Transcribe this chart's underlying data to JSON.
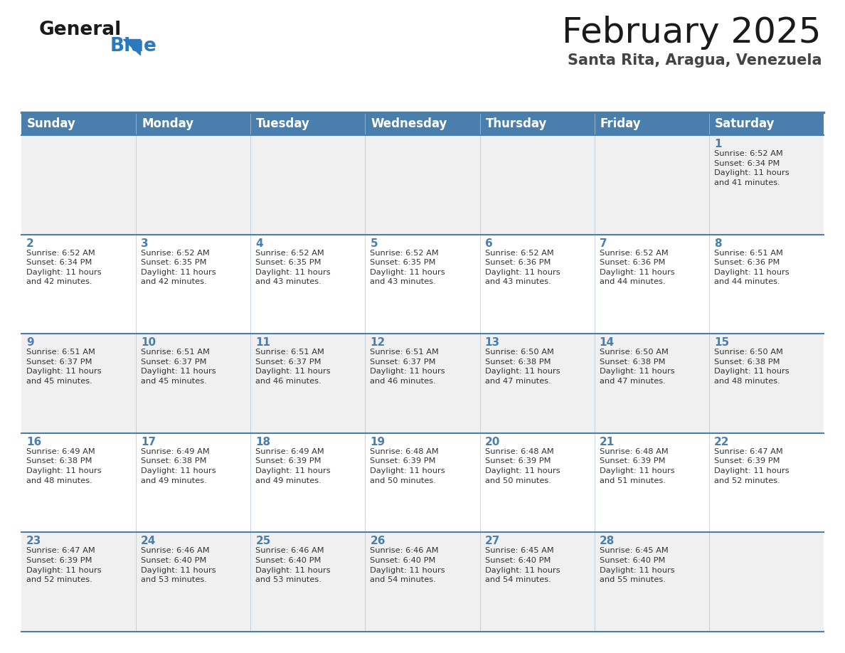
{
  "title": "February 2025",
  "subtitle": "Santa Rita, Aragua, Venezuela",
  "days_of_week": [
    "Sunday",
    "Monday",
    "Tuesday",
    "Wednesday",
    "Thursday",
    "Friday",
    "Saturday"
  ],
  "header_bg": "#4a7fad",
  "header_text": "#ffffff",
  "cell_bg_row0": "#f0f0f0",
  "cell_bg_row1": "#ffffff",
  "day_num_color": "#4a7fad",
  "text_color": "#333333",
  "border_color": "#4a7fad",
  "thin_line_color": "#b0c4d8",
  "logo_general_color": "#1a1a1a",
  "logo_blue_color": "#2a7abf",
  "calendar_data": [
    [
      null,
      null,
      null,
      null,
      null,
      null,
      {
        "day": 1,
        "sunrise": "6:52 AM",
        "sunset": "6:34 PM",
        "daylight": "11 hours and 41 minutes"
      }
    ],
    [
      {
        "day": 2,
        "sunrise": "6:52 AM",
        "sunset": "6:34 PM",
        "daylight": "11 hours and 42 minutes"
      },
      {
        "day": 3,
        "sunrise": "6:52 AM",
        "sunset": "6:35 PM",
        "daylight": "11 hours and 42 minutes"
      },
      {
        "day": 4,
        "sunrise": "6:52 AM",
        "sunset": "6:35 PM",
        "daylight": "11 hours and 43 minutes"
      },
      {
        "day": 5,
        "sunrise": "6:52 AM",
        "sunset": "6:35 PM",
        "daylight": "11 hours and 43 minutes"
      },
      {
        "day": 6,
        "sunrise": "6:52 AM",
        "sunset": "6:36 PM",
        "daylight": "11 hours and 43 minutes"
      },
      {
        "day": 7,
        "sunrise": "6:52 AM",
        "sunset": "6:36 PM",
        "daylight": "11 hours and 44 minutes"
      },
      {
        "day": 8,
        "sunrise": "6:51 AM",
        "sunset": "6:36 PM",
        "daylight": "11 hours and 44 minutes"
      }
    ],
    [
      {
        "day": 9,
        "sunrise": "6:51 AM",
        "sunset": "6:37 PM",
        "daylight": "11 hours and 45 minutes"
      },
      {
        "day": 10,
        "sunrise": "6:51 AM",
        "sunset": "6:37 PM",
        "daylight": "11 hours and 45 minutes"
      },
      {
        "day": 11,
        "sunrise": "6:51 AM",
        "sunset": "6:37 PM",
        "daylight": "11 hours and 46 minutes"
      },
      {
        "day": 12,
        "sunrise": "6:51 AM",
        "sunset": "6:37 PM",
        "daylight": "11 hours and 46 minutes"
      },
      {
        "day": 13,
        "sunrise": "6:50 AM",
        "sunset": "6:38 PM",
        "daylight": "11 hours and 47 minutes"
      },
      {
        "day": 14,
        "sunrise": "6:50 AM",
        "sunset": "6:38 PM",
        "daylight": "11 hours and 47 minutes"
      },
      {
        "day": 15,
        "sunrise": "6:50 AM",
        "sunset": "6:38 PM",
        "daylight": "11 hours and 48 minutes"
      }
    ],
    [
      {
        "day": 16,
        "sunrise": "6:49 AM",
        "sunset": "6:38 PM",
        "daylight": "11 hours and 48 minutes"
      },
      {
        "day": 17,
        "sunrise": "6:49 AM",
        "sunset": "6:38 PM",
        "daylight": "11 hours and 49 minutes"
      },
      {
        "day": 18,
        "sunrise": "6:49 AM",
        "sunset": "6:39 PM",
        "daylight": "11 hours and 49 minutes"
      },
      {
        "day": 19,
        "sunrise": "6:48 AM",
        "sunset": "6:39 PM",
        "daylight": "11 hours and 50 minutes"
      },
      {
        "day": 20,
        "sunrise": "6:48 AM",
        "sunset": "6:39 PM",
        "daylight": "11 hours and 50 minutes"
      },
      {
        "day": 21,
        "sunrise": "6:48 AM",
        "sunset": "6:39 PM",
        "daylight": "11 hours and 51 minutes"
      },
      {
        "day": 22,
        "sunrise": "6:47 AM",
        "sunset": "6:39 PM",
        "daylight": "11 hours and 52 minutes"
      }
    ],
    [
      {
        "day": 23,
        "sunrise": "6:47 AM",
        "sunset": "6:39 PM",
        "daylight": "11 hours and 52 minutes"
      },
      {
        "day": 24,
        "sunrise": "6:46 AM",
        "sunset": "6:40 PM",
        "daylight": "11 hours and 53 minutes"
      },
      {
        "day": 25,
        "sunrise": "6:46 AM",
        "sunset": "6:40 PM",
        "daylight": "11 hours and 53 minutes"
      },
      {
        "day": 26,
        "sunrise": "6:46 AM",
        "sunset": "6:40 PM",
        "daylight": "11 hours and 54 minutes"
      },
      {
        "day": 27,
        "sunrise": "6:45 AM",
        "sunset": "6:40 PM",
        "daylight": "11 hours and 54 minutes"
      },
      {
        "day": 28,
        "sunrise": "6:45 AM",
        "sunset": "6:40 PM",
        "daylight": "11 hours and 55 minutes"
      },
      null
    ]
  ]
}
